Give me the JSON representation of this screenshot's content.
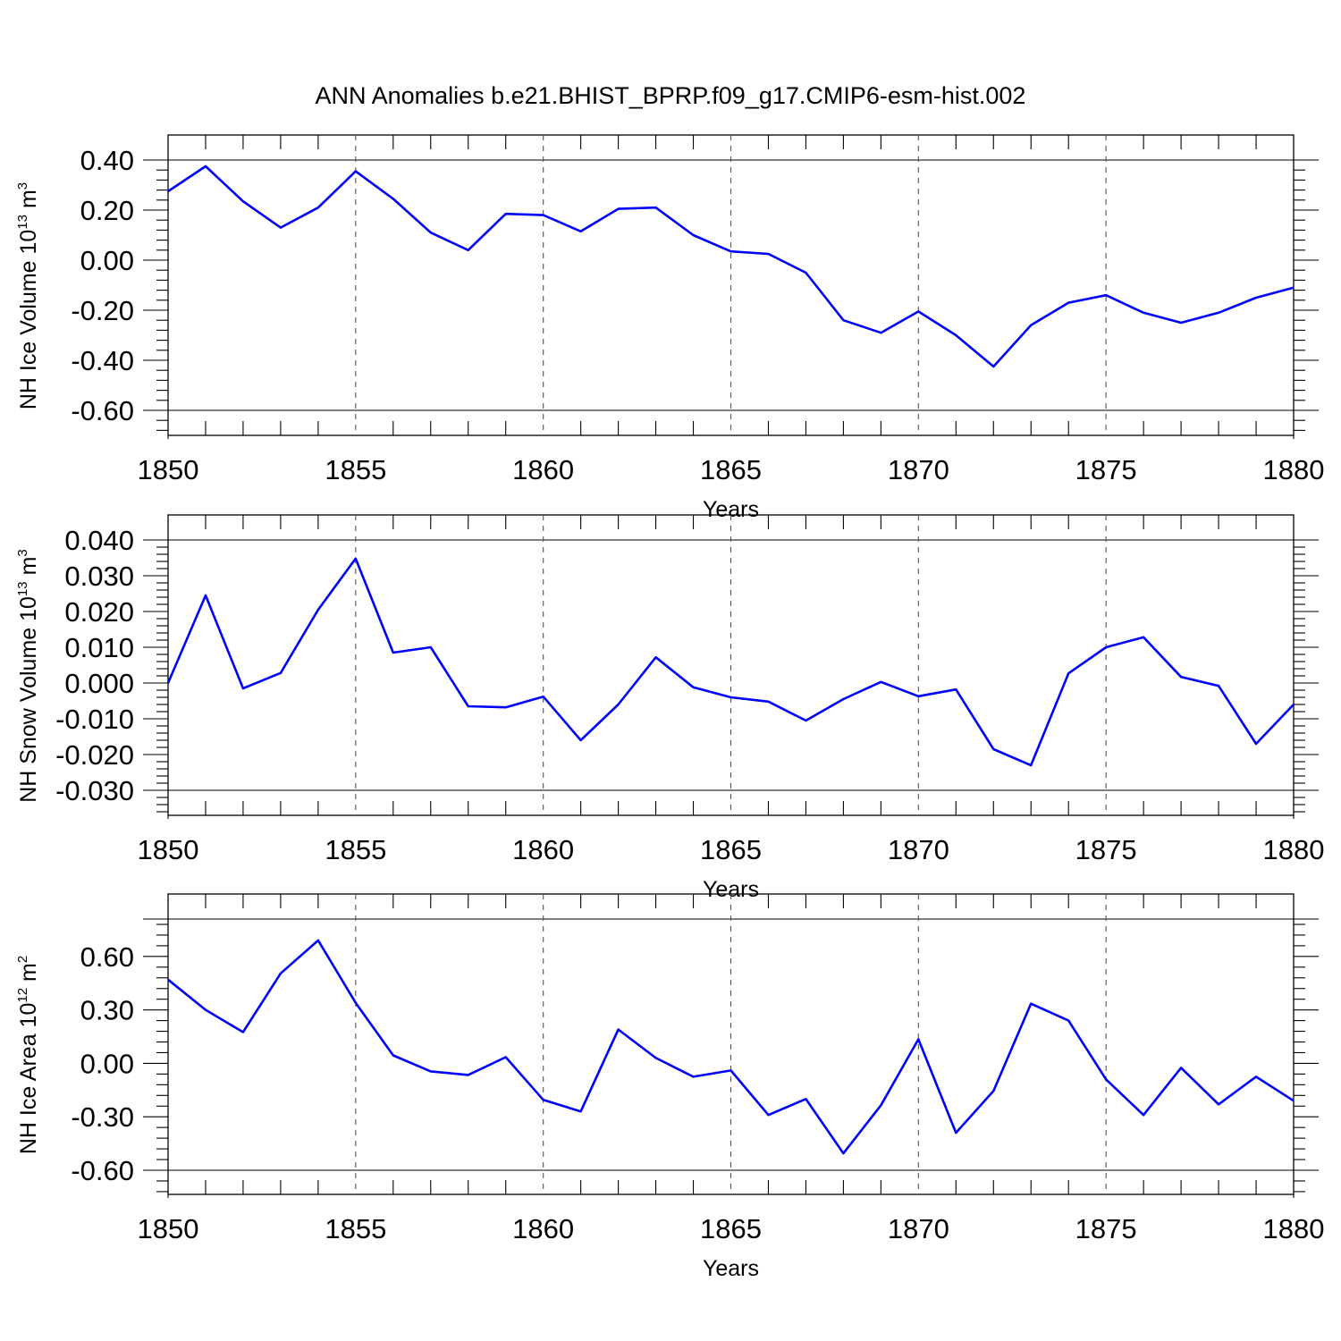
{
  "title": "ANN Anomalies b.e21.BHIST_BPRP.f09_g17.CMIP6-esm-hist.002",
  "chart_data": [
    {
      "type": "line",
      "xlabel": "Years",
      "ylabel": {
        "text": "NH Ice Volume 10",
        "sup1": "13",
        "mid": " m",
        "sup2": "3"
      },
      "xlim": [
        1850,
        1880
      ],
      "ylim": [
        -0.6,
        0.4
      ],
      "xticks": [
        1850,
        1855,
        1860,
        1865,
        1870,
        1875,
        1880
      ],
      "yticks": [
        -0.6,
        -0.4,
        -0.2,
        0.0,
        0.2,
        0.4
      ],
      "ytick_labels": [
        "-0.60",
        "-0.40",
        "-0.20",
        "0.00",
        "0.20",
        "0.40"
      ],
      "grid": "dashed vertical lines at x ticks",
      "series_color": "#0000ff",
      "x": [
        1850,
        1851,
        1852,
        1853,
        1854,
        1855,
        1856,
        1857,
        1858,
        1859,
        1860,
        1861,
        1862,
        1863,
        1864,
        1865,
        1866,
        1867,
        1868,
        1869,
        1870,
        1871,
        1872,
        1873,
        1874,
        1875,
        1876,
        1877,
        1878,
        1879,
        1880
      ],
      "y": [
        0.275,
        0.375,
        0.235,
        0.13,
        0.21,
        0.355,
        0.245,
        0.11,
        0.04,
        0.185,
        0.18,
        0.115,
        0.205,
        0.21,
        0.1,
        0.035,
        0.025,
        -0.05,
        -0.24,
        -0.29,
        -0.205,
        -0.3,
        -0.425,
        -0.26,
        -0.17,
        -0.14,
        -0.21,
        -0.25,
        -0.21,
        -0.15,
        -0.11
      ]
    },
    {
      "type": "line",
      "xlabel": "Years",
      "ylabel": {
        "text": "NH Snow Volume 10",
        "sup1": "13",
        "mid": " m",
        "sup2": "3"
      },
      "xlim": [
        1850,
        1880
      ],
      "ylim": [
        -0.03,
        0.04
      ],
      "xticks": [
        1850,
        1855,
        1860,
        1865,
        1870,
        1875,
        1880
      ],
      "yticks": [
        -0.03,
        -0.02,
        -0.01,
        0.0,
        0.01,
        0.02,
        0.03,
        0.04
      ],
      "ytick_labels": [
        "-0.030",
        "-0.020",
        "-0.010",
        "0.000",
        "0.010",
        "0.020",
        "0.030",
        "0.040"
      ],
      "grid": "dashed vertical lines at x ticks",
      "series_color": "#0000ff",
      "x": [
        1850,
        1851,
        1852,
        1853,
        1854,
        1855,
        1856,
        1857,
        1858,
        1859,
        1860,
        1861,
        1862,
        1863,
        1864,
        1865,
        1866,
        1867,
        1868,
        1869,
        1870,
        1871,
        1872,
        1873,
        1874,
        1875,
        1876,
        1877,
        1878,
        1879,
        1880
      ],
      "y": [
        0.0,
        0.0245,
        -0.0015,
        0.0028,
        0.0205,
        0.0348,
        0.0085,
        0.01,
        -0.0065,
        -0.0068,
        -0.0038,
        -0.016,
        -0.006,
        0.0072,
        -0.0012,
        -0.004,
        -0.0052,
        -0.0105,
        -0.0045,
        0.0003,
        -0.0037,
        -0.0018,
        -0.0185,
        -0.023,
        0.0027,
        0.01,
        0.0128,
        0.0017,
        -0.0008,
        -0.017,
        -0.006
      ]
    },
    {
      "type": "line",
      "xlabel": "Years",
      "ylabel": {
        "text": "NH Ice Area 10",
        "sup1": "12",
        "mid": " m",
        "sup2": "2"
      },
      "xlim": [
        1850,
        1880
      ],
      "ylim": [
        -0.6,
        0.81
      ],
      "xticks": [
        1850,
        1855,
        1860,
        1865,
        1870,
        1875,
        1880
      ],
      "yticks": [
        -0.6,
        -0.3,
        0.0,
        0.3,
        0.6
      ],
      "ytick_labels": [
        "-0.60",
        "-0.30",
        "0.00",
        "0.30",
        "0.60"
      ],
      "grid": "dashed vertical lines at x ticks",
      "series_color": "#0000ff",
      "x": [
        1850,
        1851,
        1852,
        1853,
        1854,
        1855,
        1856,
        1857,
        1858,
        1859,
        1860,
        1861,
        1862,
        1863,
        1864,
        1865,
        1866,
        1867,
        1868,
        1869,
        1870,
        1871,
        1872,
        1873,
        1874,
        1875,
        1876,
        1877,
        1878,
        1879,
        1880
      ],
      "y": [
        0.47,
        0.3,
        0.175,
        0.505,
        0.69,
        0.34,
        0.045,
        -0.045,
        -0.065,
        0.035,
        -0.205,
        -0.27,
        0.19,
        0.03,
        -0.075,
        -0.04,
        -0.29,
        -0.2,
        -0.505,
        -0.235,
        0.135,
        -0.39,
        -0.155,
        0.335,
        0.24,
        -0.09,
        -0.29,
        -0.025,
        -0.23,
        -0.075,
        -0.21
      ]
    }
  ]
}
